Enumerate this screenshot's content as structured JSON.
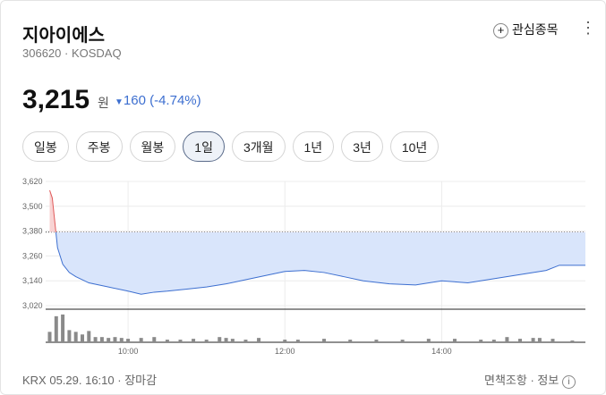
{
  "header": {
    "title": "지아이에스",
    "code": "306620",
    "market": "KOSDAQ",
    "watch": "관심종목"
  },
  "price": {
    "value": "3,215",
    "unit": "원",
    "change": "160 (-4.74%)"
  },
  "tabs": [
    "일봉",
    "주봉",
    "월봉",
    "1일",
    "3개월",
    "1년",
    "3년",
    "10년"
  ],
  "active_tab": "1일",
  "chart_data": {
    "type": "line",
    "x": [
      "09:00",
      "09:02",
      "09:04",
      "09:06",
      "09:10",
      "09:15",
      "09:20",
      "09:30",
      "09:45",
      "10:00",
      "10:10",
      "10:20",
      "10:30",
      "10:45",
      "11:00",
      "11:15",
      "11:30",
      "11:45",
      "12:00",
      "12:15",
      "12:30",
      "12:45",
      "13:00",
      "13:20",
      "13:40",
      "14:00",
      "14:20",
      "14:40",
      "15:00",
      "15:20",
      "15:30",
      "15:50"
    ],
    "values": [
      3577,
      3540,
      3420,
      3300,
      3220,
      3180,
      3160,
      3130,
      3110,
      3090,
      3075,
      3085,
      3090,
      3100,
      3110,
      3125,
      3145,
      3165,
      3185,
      3190,
      3180,
      3160,
      3140,
      3125,
      3120,
      3140,
      3130,
      3150,
      3170,
      3190,
      3215,
      3215
    ],
    "color": "#3d6fd0",
    "up_color": "#e05a5a",
    "reference": 3375,
    "xlim": [
      "09:00",
      "15:50"
    ],
    "xticks": [
      "10:00",
      "12:00",
      "14:00"
    ],
    "ylim": [
      3020,
      3620
    ],
    "yticks": [
      {
        "value": 3620,
        "label": "3,620"
      },
      {
        "value": 3500,
        "label": "3,500"
      },
      {
        "value": 3380,
        "label": "3,380"
      },
      {
        "value": 3260,
        "label": "3,260"
      },
      {
        "value": 3140,
        "label": "3,140"
      },
      {
        "value": 3020,
        "label": "3,020"
      }
    ],
    "grid": true,
    "volume": {
      "x": [
        "09:00",
        "09:05",
        "09:10",
        "09:15",
        "09:20",
        "09:25",
        "09:30",
        "09:35",
        "09:40",
        "09:45",
        "09:50",
        "09:55",
        "10:00",
        "10:10",
        "10:20",
        "10:30",
        "10:40",
        "10:50",
        "11:00",
        "11:10",
        "11:15",
        "11:20",
        "11:30",
        "11:40",
        "12:00",
        "12:10",
        "12:30",
        "12:50",
        "13:10",
        "13:30",
        "13:50",
        "14:10",
        "14:30",
        "14:40",
        "14:50",
        "15:00",
        "15:10",
        "15:15",
        "15:25",
        "15:40"
      ],
      "values": [
        12,
        30,
        32,
        14,
        12,
        9,
        13,
        6,
        6,
        5,
        6,
        5,
        4,
        5,
        6,
        3,
        3,
        4,
        3,
        6,
        5,
        4,
        3,
        5,
        3,
        3,
        4,
        3,
        3,
        3,
        4,
        4,
        3,
        3,
        6,
        4,
        5,
        5,
        4,
        2
      ],
      "color": "#8a8a8a",
      "vlim": [
        0,
        35
      ]
    }
  },
  "footer": {
    "source": "KRX 05.29. 16:10",
    "status": "장마감",
    "disclaimer": "면책조항",
    "info": "정보"
  }
}
